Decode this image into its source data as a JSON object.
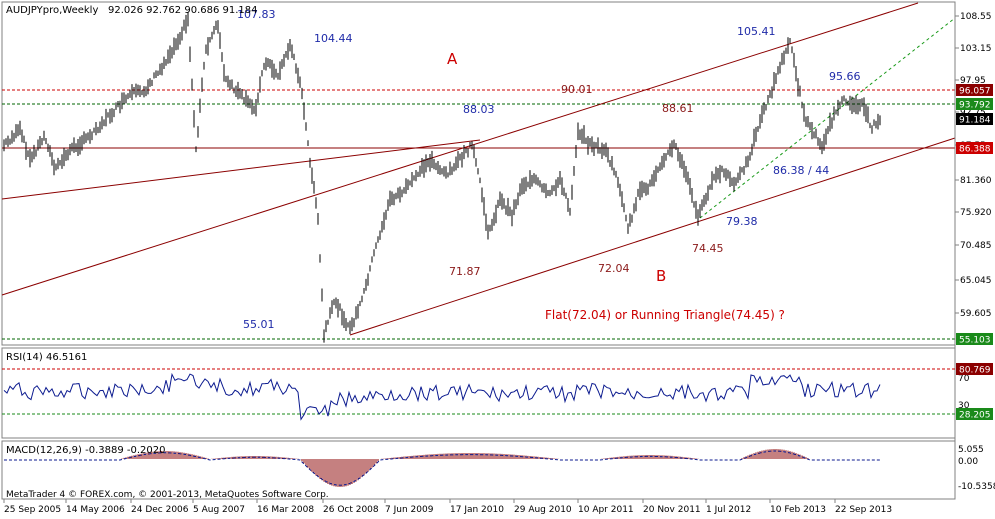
{
  "window": {
    "symbol_label": "AUDJPYpro,Weekly",
    "ohlc": "92.026 92.762 90.686 91.184",
    "copyright": "MetaTrader 4 © FOREX.com, © 2001-2013, MetaQuotes Software Corp."
  },
  "colors": {
    "price": "#000000",
    "channel": "#8b0000",
    "hline_red": "#8b0000",
    "hline_green": "#006400",
    "dotted_red": "#cc0000",
    "blue_label": "#1f2ba8",
    "red_label": "#cc0000",
    "dark_red_label": "#8b1a1a",
    "rsi_line": "#0b1a8f",
    "macd_hist": "#8b0000",
    "macd_signal": "#0b1a8f",
    "trend_dashed": "#1a9a1a"
  },
  "price_axis": {
    "ticks": [
      "108.55",
      "103.15",
      "97.95",
      "92.75",
      "87.55",
      "81.360",
      "75.920",
      "70.485",
      "65.045",
      "59.605"
    ],
    "boxes": [
      {
        "label": "96.057",
        "bg": "#8b0000",
        "fg": "#ffffff"
      },
      {
        "label": "93.792",
        "bg": "#1a8a1a",
        "fg": "#ffffff"
      },
      {
        "label": "91.184",
        "bg": "#000000",
        "fg": "#ffffff"
      },
      {
        "label": "86.388",
        "bg": "#cc0000",
        "fg": "#ffffff"
      },
      {
        "label": "55.103",
        "bg": "#1a8a1a",
        "fg": "#ffffff"
      }
    ]
  },
  "annotations": {
    "blue": [
      "107.83",
      "104.44",
      "55.01",
      "88.03",
      "105.41",
      "95.66",
      "86.38 / 44",
      "79.38"
    ],
    "dark_red": [
      "90.01",
      "88.61",
      "71.87",
      "72.04",
      "74.45"
    ],
    "wave_a": "A",
    "wave_b": "B",
    "question": "Flat(72.04) or Running Triangle(74.45)  ?"
  },
  "rsi": {
    "label": "RSI(14) 46.5161",
    "ticks": [
      "70",
      "30"
    ],
    "boxes": [
      {
        "label": "80.769",
        "bg": "#8b0000",
        "fg": "#ffffff"
      },
      {
        "label": "28.205",
        "bg": "#1a8a1a",
        "fg": "#ffffff"
      }
    ]
  },
  "macd": {
    "label": "MACD(12,26,9) -0.3889 -0.2020",
    "ticks": [
      "5.055",
      "0.00",
      "-10.5358"
    ]
  },
  "time_axis": [
    "25 Sep 2005",
    "14 May 2006",
    "24 Dec 2006",
    "5 Aug 2007",
    "16 Mar 2008",
    "26 Oct 2008",
    "7 Jun 2009",
    "17 Jan 2010",
    "29 Aug 2010",
    "10 Apr 2011",
    "20 Nov 2011",
    "1 Jul 2012",
    "10 Feb 2013",
    "22 Sep 2013"
  ]
}
